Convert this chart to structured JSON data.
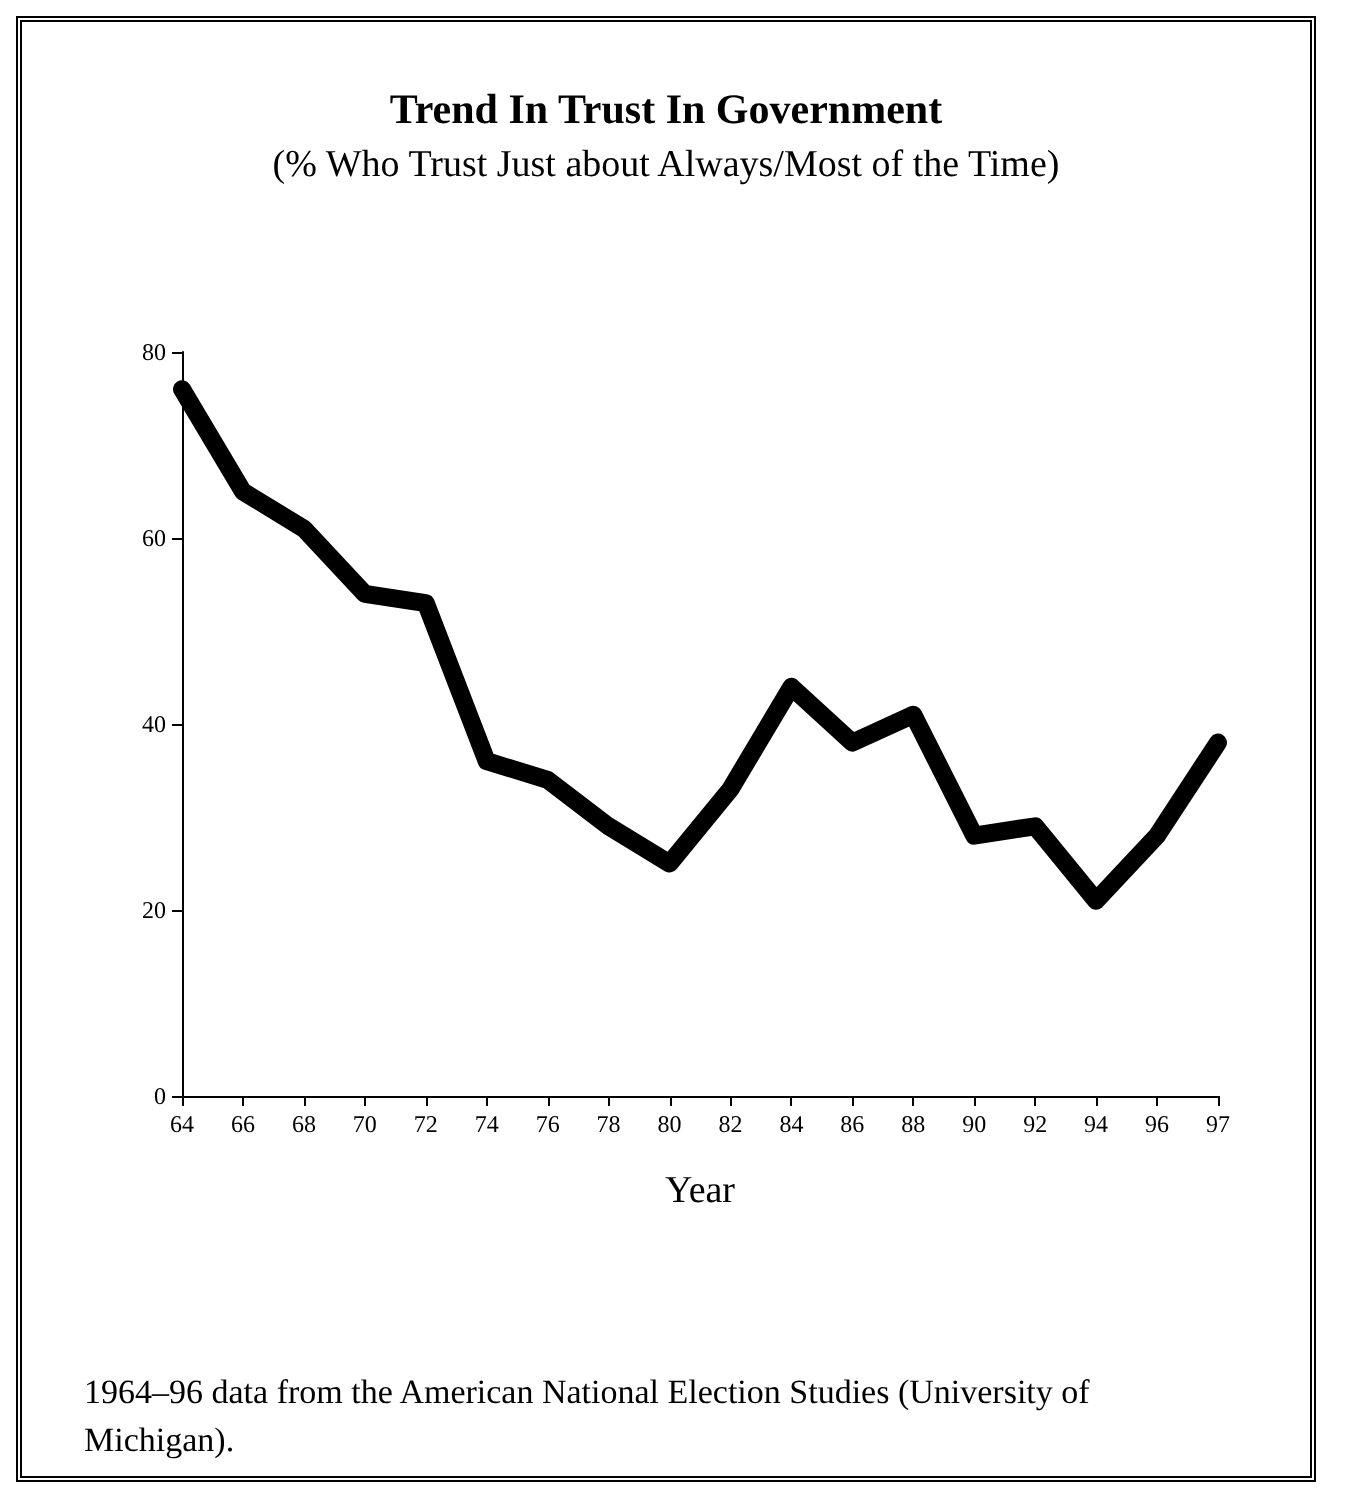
{
  "chart_data": {
    "type": "line",
    "title": "Trend In Trust In Government",
    "subtitle": "(% Who Trust Just about Always/Most of the Time)",
    "xlabel": "Year",
    "categories": [
      "64",
      "66",
      "68",
      "70",
      "72",
      "74",
      "76",
      "78",
      "80",
      "82",
      "84",
      "86",
      "88",
      "90",
      "92",
      "94",
      "96",
      "97"
    ],
    "series": [
      {
        "color": "#000000",
        "values": [
          76,
          65,
          61,
          54,
          53,
          36,
          34,
          29,
          25,
          33,
          44,
          38,
          41,
          28,
          29,
          21,
          28,
          38
        ]
      }
    ],
    "ylim": [
      0,
      80
    ],
    "yticks": [
      0,
      20,
      40,
      60,
      80
    ],
    "grid": false,
    "line_style": "solid",
    "annotations": [
      "1964–96 data from the American National Election Studies (University of Michigan)."
    ]
  }
}
